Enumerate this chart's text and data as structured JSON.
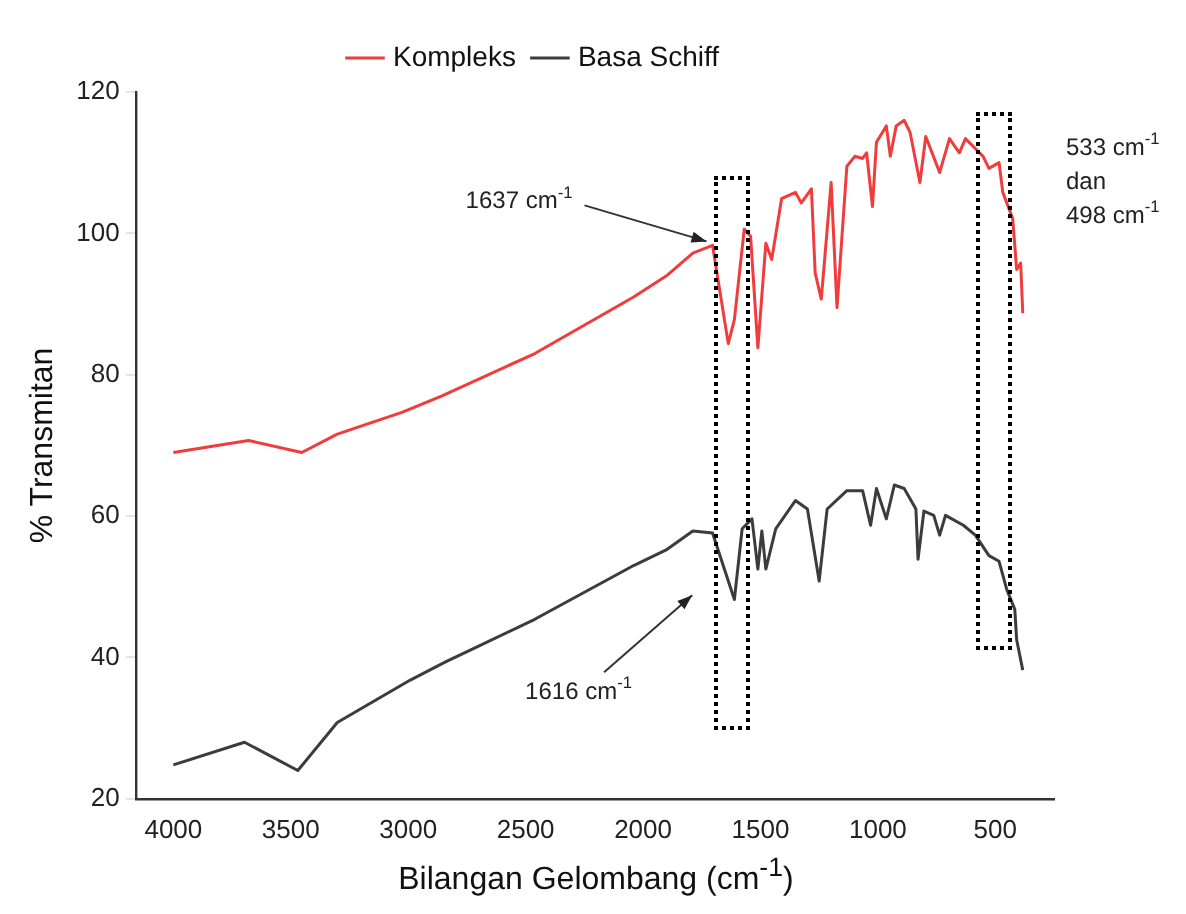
{
  "chart_data": {
    "type": "line",
    "xlabel": "Bilangan Gelombang (cm$^{-1}$)",
    "ylabel": "% Transmitan",
    "xlim": [
      4160,
      250
    ],
    "xticks": [
      4000,
      3500,
      3000,
      2500,
      2000,
      1500,
      1000,
      500
    ],
    "ylim": [
      20,
      120
    ],
    "yticks": [
      20,
      40,
      60,
      80,
      100,
      120
    ],
    "grid": false,
    "legend": "top",
    "marker": "none",
    "line_style": "solid",
    "series": [
      {
        "name": "Kompleks",
        "color": "#f03c3c",
        "x": [
          4000,
          3680,
          3453,
          3302,
          3024,
          2856,
          2461,
          2040,
          1900,
          1788,
          1704,
          1637,
          1611,
          1569,
          1542,
          1511,
          1477,
          1452,
          1410,
          1351,
          1326,
          1283,
          1267,
          1241,
          1199,
          1174,
          1132,
          1098,
          1065,
          1048,
          1023,
          1006,
          964,
          947,
          922,
          888,
          863,
          821,
          796,
          737,
          695,
          653,
          627,
          552,
          527,
          484,
          468,
          426,
          409,
          392,
          383
        ],
        "values": [
          69,
          70.7,
          69,
          71.6,
          74.7,
          77,
          83,
          91,
          94,
          97.2,
          98.3,
          84.4,
          87.8,
          100.6,
          99.6,
          83.8,
          98.6,
          96.3,
          104.9,
          105.8,
          104.3,
          106.3,
          94.4,
          90.7,
          107.2,
          89.5,
          109.5,
          110.9,
          110.6,
          111.4,
          103.8,
          112.9,
          115.2,
          110.9,
          115.2,
          116,
          114.3,
          107.2,
          113.7,
          108.6,
          113.4,
          111.4,
          113.4,
          110.9,
          109.2,
          110,
          105.8,
          102.1,
          94.9,
          95.8,
          88.7
        ]
      },
      {
        "name": "Basa Schiff",
        "color": "#3c3c3c",
        "x": [
          4000,
          3697,
          3470,
          3302,
          2991,
          2839,
          2738,
          2461,
          2040,
          1897,
          1788,
          1704,
          1611,
          1578,
          1536,
          1511,
          1494,
          1477,
          1435,
          1351,
          1300,
          1250,
          1216,
          1132,
          1065,
          1031,
          1006,
          964,
          930,
          888,
          838,
          829,
          804,
          762,
          737,
          712,
          636,
          585,
          527,
          484,
          451,
          417,
          409,
          383
        ],
        "values": [
          24.8,
          28,
          24,
          30.8,
          36.8,
          39.4,
          41,
          45.4,
          53,
          55.3,
          57.9,
          57.6,
          48.2,
          58.2,
          59.6,
          52.5,
          57.9,
          52.5,
          58.2,
          62.2,
          61,
          50.8,
          61,
          63.6,
          63.6,
          58.7,
          63.9,
          59.6,
          64.4,
          63.9,
          61,
          53.9,
          60.7,
          60.1,
          57.3,
          60.1,
          58.7,
          57.3,
          54.4,
          53.6,
          49.6,
          46.8,
          42.5,
          38.2
        ]
      }
    ],
    "annotations": [
      {
        "text": "1637 cm$^{-1}$",
        "x": 1704,
        "y": 98.3
      },
      "1616 cm$^{-1}$",
      "533 cm$^{-1}$",
      "dan",
      "498 cm$^{-1}$"
    ]
  }
}
